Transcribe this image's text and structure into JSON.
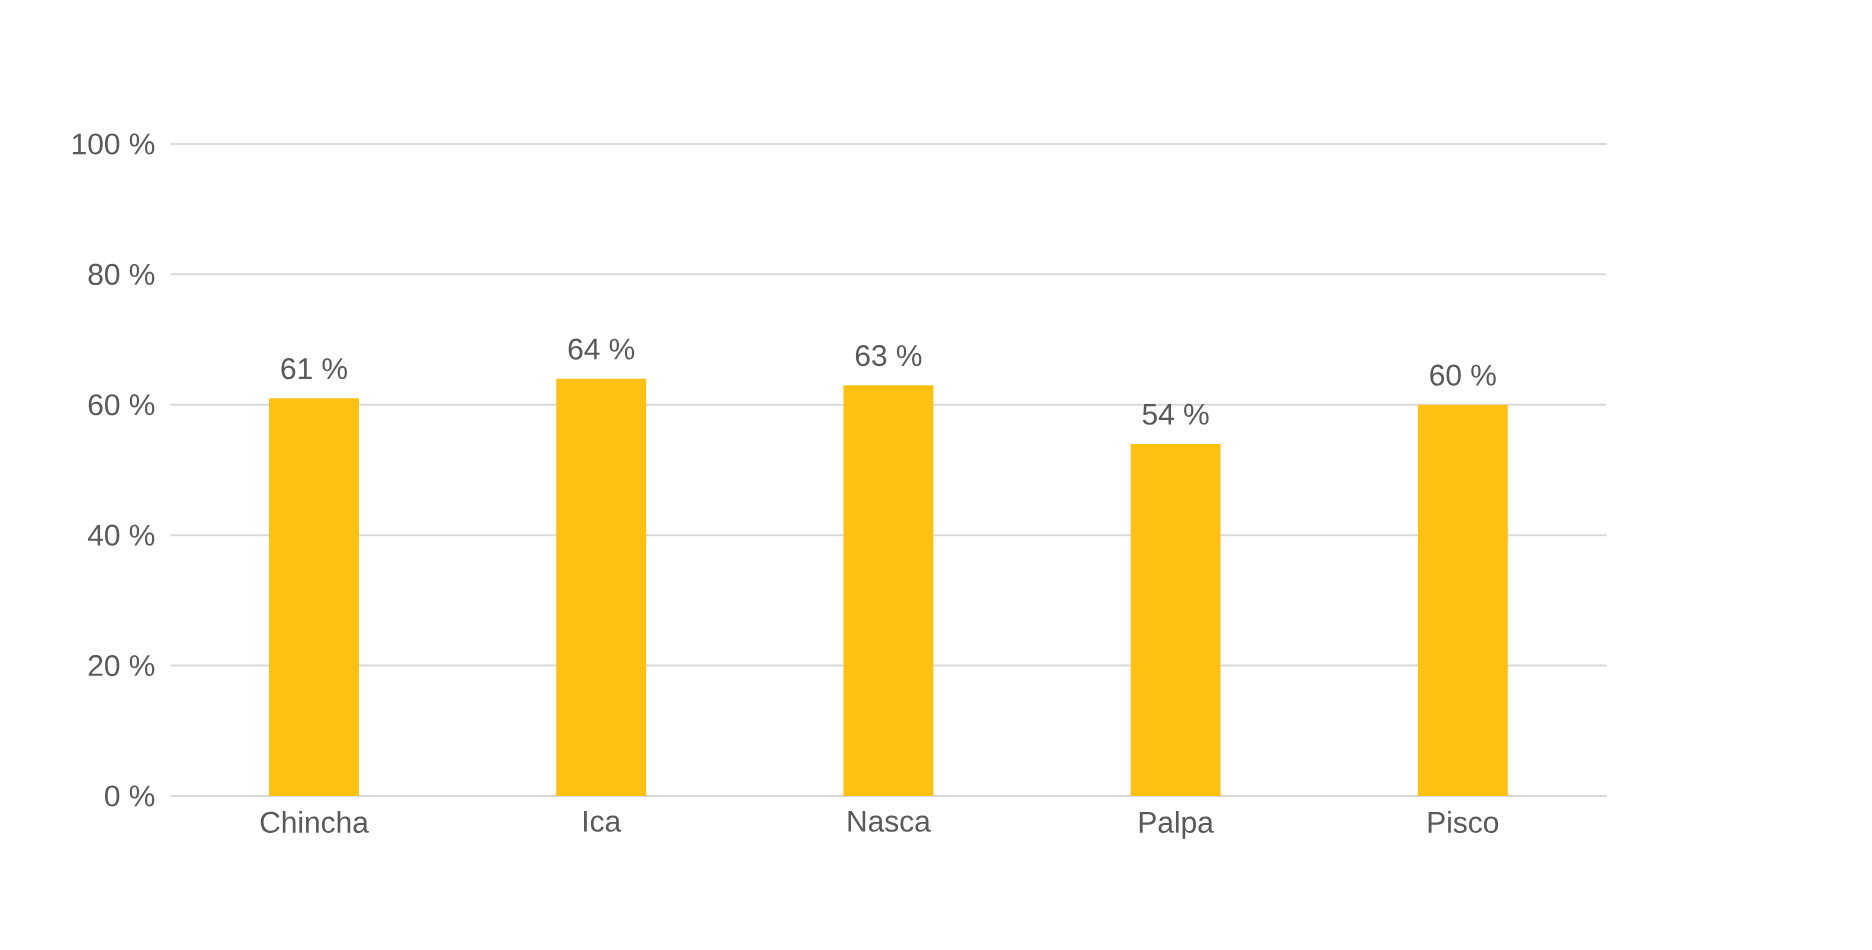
{
  "chart_data": {
    "type": "bar",
    "categories": [
      "Chincha",
      "Ica",
      "Nasca",
      "Palpa",
      "Pisco"
    ],
    "values": [
      61,
      64,
      63,
      54,
      60
    ],
    "value_labels": [
      "61 %",
      "64 %",
      "63 %",
      "54 %",
      "60 %"
    ],
    "color": "#fdc113",
    "ylim": [
      0,
      100
    ],
    "yticks": [
      {
        "value": 0,
        "label": "0 %"
      },
      {
        "value": 20,
        "label": "20 %"
      },
      {
        "value": 40,
        "label": "40 %"
      },
      {
        "value": 60,
        "label": "60 %"
      },
      {
        "value": 80,
        "label": "80 %"
      },
      {
        "value": 100,
        "label": "100 %"
      }
    ],
    "grid": "y"
  }
}
